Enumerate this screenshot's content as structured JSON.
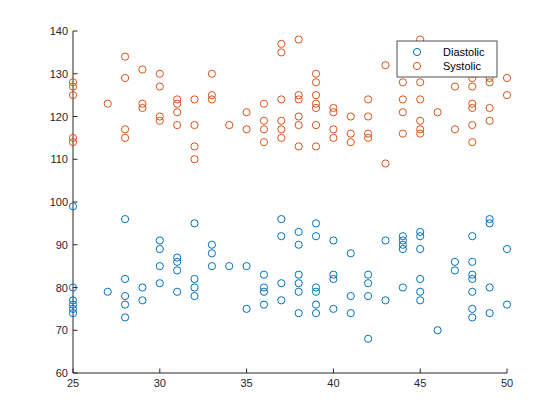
{
  "chart_data": {
    "type": "scatter",
    "xlim": [
      25,
      50
    ],
    "ylim": [
      60,
      140
    ],
    "xticks": [
      25,
      30,
      35,
      40,
      45,
      50
    ],
    "yticks": [
      60,
      70,
      80,
      90,
      100,
      110,
      120,
      130,
      140
    ],
    "grid": false,
    "legend": "northeast",
    "series": [
      {
        "name": "Diastolic",
        "color": "#0072bd",
        "marker": "circle",
        "x": [
          25,
          25,
          25,
          25,
          25,
          25,
          27,
          28,
          28,
          28,
          28,
          28,
          29,
          29,
          30,
          30,
          30,
          30,
          31,
          31,
          31,
          31,
          32,
          32,
          32,
          32,
          33,
          33,
          33,
          34,
          35,
          35,
          36,
          36,
          36,
          36,
          37,
          37,
          37,
          37,
          38,
          38,
          38,
          38,
          38,
          38,
          39,
          39,
          39,
          39,
          39,
          39,
          40,
          40,
          40,
          40,
          41,
          41,
          41,
          42,
          42,
          42,
          42,
          43,
          43,
          44,
          44,
          44,
          44,
          44,
          45,
          45,
          45,
          45,
          45,
          45,
          46,
          47,
          47,
          48,
          48,
          48,
          48,
          48,
          48,
          48,
          49,
          49,
          49,
          49,
          50,
          50
        ],
        "values": [
          99,
          80,
          77,
          76,
          75,
          74,
          79,
          96,
          82,
          78,
          76,
          73,
          80,
          77,
          91,
          89,
          85,
          81,
          87,
          86,
          84,
          79,
          95,
          82,
          80,
          78,
          90,
          88,
          85,
          85,
          85,
          75,
          83,
          80,
          79,
          76,
          96,
          92,
          81,
          77,
          93,
          90,
          83,
          81,
          79,
          74,
          95,
          92,
          80,
          79,
          76,
          74,
          91,
          83,
          82,
          75,
          88,
          78,
          74,
          83,
          81,
          78,
          68,
          91,
          77,
          92,
          91,
          90,
          89,
          80,
          93,
          92,
          89,
          82,
          79,
          77,
          70,
          86,
          84,
          92,
          86,
          83,
          82,
          79,
          75,
          73,
          96,
          95,
          80,
          74,
          89,
          76
        ]
      },
      {
        "name": "Systolic",
        "color": "#d95319",
        "marker": "circle",
        "x": [
          25,
          25,
          25,
          25,
          25,
          27,
          28,
          28,
          28,
          28,
          29,
          29,
          29,
          30,
          30,
          30,
          30,
          31,
          31,
          31,
          31,
          32,
          32,
          32,
          32,
          33,
          33,
          33,
          34,
          35,
          35,
          36,
          36,
          36,
          36,
          37,
          37,
          37,
          37,
          37,
          37,
          38,
          38,
          38,
          38,
          38,
          38,
          39,
          39,
          39,
          39,
          39,
          39,
          39,
          40,
          40,
          40,
          40,
          41,
          41,
          41,
          42,
          42,
          42,
          42,
          43,
          43,
          44,
          44,
          44,
          44,
          45,
          45,
          45,
          45,
          45,
          45,
          45,
          45,
          46,
          47,
          47,
          48,
          48,
          48,
          48,
          48,
          48,
          48,
          48,
          49,
          49,
          49,
          49,
          50,
          50
        ],
        "values": [
          128,
          127,
          125,
          115,
          114,
          123,
          134,
          129,
          117,
          115,
          131,
          123,
          122,
          130,
          127,
          120,
          119,
          124,
          123,
          121,
          118,
          124,
          118,
          113,
          110,
          130,
          125,
          124,
          118,
          121,
          117,
          123,
          119,
          117,
          114,
          137,
          135,
          124,
          119,
          117,
          115,
          138,
          125,
          124,
          120,
          118,
          113,
          130,
          128,
          125,
          123,
          122,
          118,
          113,
          122,
          121,
          117,
          115,
          120,
          116,
          114,
          124,
          120,
          116,
          115,
          132,
          109,
          128,
          124,
          121,
          116,
          138,
          134,
          131,
          128,
          124,
          119,
          117,
          116,
          121,
          127,
          117,
          132,
          130,
          129,
          127,
          123,
          122,
          118,
          114,
          129,
          128,
          122,
          119,
          129,
          125
        ]
      }
    ]
  }
}
